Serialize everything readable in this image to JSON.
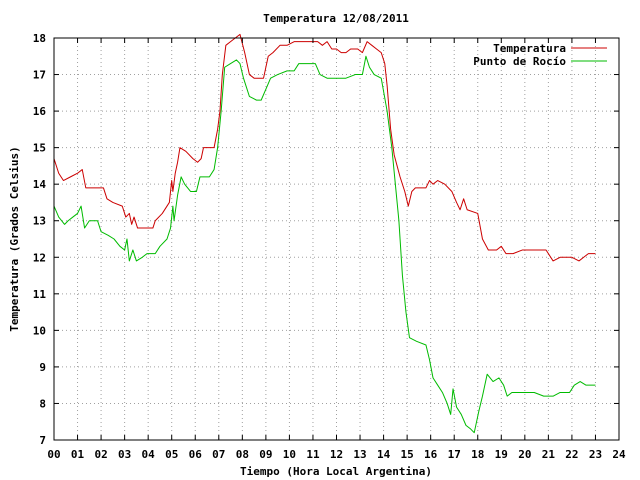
{
  "chart_data": {
    "type": "line",
    "title": "Temperatura 12/08/2011",
    "xlabel": "Tiempo (Hora Local Argentina)",
    "ylabel": "Temperatura (Grados Celsius)",
    "xlim": [
      0,
      24
    ],
    "ylim": [
      7,
      18
    ],
    "grid": true,
    "legend_position": "top-right",
    "x_ticks": [
      {
        "value": 0,
        "label": "00"
      },
      {
        "value": 1,
        "label": "01"
      },
      {
        "value": 2,
        "label": "02"
      },
      {
        "value": 3,
        "label": "03"
      },
      {
        "value": 4,
        "label": "04"
      },
      {
        "value": 5,
        "label": "05"
      },
      {
        "value": 6,
        "label": "06"
      },
      {
        "value": 7,
        "label": "07"
      },
      {
        "value": 8,
        "label": "08"
      },
      {
        "value": 9,
        "label": "09"
      },
      {
        "value": 10,
        "label": "10"
      },
      {
        "value": 11,
        "label": "11"
      },
      {
        "value": 12,
        "label": "12"
      },
      {
        "value": 13,
        "label": "13"
      },
      {
        "value": 14,
        "label": "14"
      },
      {
        "value": 15,
        "label": "15"
      },
      {
        "value": 16,
        "label": "16"
      },
      {
        "value": 17,
        "label": "17"
      },
      {
        "value": 18,
        "label": "18"
      },
      {
        "value": 19,
        "label": "19"
      },
      {
        "value": 20,
        "label": "20"
      },
      {
        "value": 21,
        "label": "21"
      },
      {
        "value": 22,
        "label": "22"
      },
      {
        "value": 23,
        "label": "23"
      },
      {
        "value": 24,
        "label": "24"
      }
    ],
    "y_ticks": [
      {
        "value": 7,
        "label": "7"
      },
      {
        "value": 8,
        "label": "8"
      },
      {
        "value": 9,
        "label": "9"
      },
      {
        "value": 10,
        "label": "10"
      },
      {
        "value": 11,
        "label": "11"
      },
      {
        "value": 12,
        "label": "12"
      },
      {
        "value": 13,
        "label": "13"
      },
      {
        "value": 14,
        "label": "14"
      },
      {
        "value": 15,
        "label": "15"
      },
      {
        "value": 16,
        "label": "16"
      },
      {
        "value": 17,
        "label": "17"
      },
      {
        "value": 18,
        "label": "18"
      }
    ],
    "series": [
      {
        "name": "Temperatura",
        "color": "#cc0000",
        "points": [
          [
            0.0,
            14.7
          ],
          [
            0.2,
            14.3
          ],
          [
            0.4,
            14.1
          ],
          [
            0.7,
            14.2
          ],
          [
            1.0,
            14.3
          ],
          [
            1.2,
            14.4
          ],
          [
            1.35,
            13.9
          ],
          [
            1.6,
            13.9
          ],
          [
            2.1,
            13.9
          ],
          [
            2.25,
            13.6
          ],
          [
            2.5,
            13.5
          ],
          [
            2.9,
            13.4
          ],
          [
            3.05,
            13.1
          ],
          [
            3.2,
            13.2
          ],
          [
            3.3,
            12.9
          ],
          [
            3.4,
            13.1
          ],
          [
            3.55,
            12.8
          ],
          [
            3.8,
            12.8
          ],
          [
            4.2,
            12.8
          ],
          [
            4.3,
            13.0
          ],
          [
            4.6,
            13.2
          ],
          [
            4.9,
            13.5
          ],
          [
            5.0,
            14.1
          ],
          [
            5.05,
            13.8
          ],
          [
            5.15,
            14.3
          ],
          [
            5.25,
            14.6
          ],
          [
            5.35,
            15.0
          ],
          [
            5.6,
            14.9
          ],
          [
            5.9,
            14.7
          ],
          [
            6.1,
            14.6
          ],
          [
            6.25,
            14.7
          ],
          [
            6.35,
            15.0
          ],
          [
            6.8,
            15.0
          ],
          [
            6.95,
            15.5
          ],
          [
            7.05,
            16.0
          ],
          [
            7.15,
            17.0
          ],
          [
            7.3,
            17.8
          ],
          [
            7.5,
            17.9
          ],
          [
            7.7,
            18.0
          ],
          [
            7.9,
            18.1
          ],
          [
            8.1,
            17.6
          ],
          [
            8.3,
            17.0
          ],
          [
            8.5,
            16.9
          ],
          [
            8.9,
            16.9
          ],
          [
            9.1,
            17.5
          ],
          [
            9.3,
            17.6
          ],
          [
            9.6,
            17.8
          ],
          [
            9.9,
            17.8
          ],
          [
            10.2,
            17.9
          ],
          [
            10.5,
            17.9
          ],
          [
            10.8,
            17.9
          ],
          [
            11.2,
            17.9
          ],
          [
            11.4,
            17.8
          ],
          [
            11.6,
            17.9
          ],
          [
            11.8,
            17.7
          ],
          [
            12.0,
            17.7
          ],
          [
            12.2,
            17.6
          ],
          [
            12.4,
            17.6
          ],
          [
            12.6,
            17.7
          ],
          [
            12.9,
            17.7
          ],
          [
            13.1,
            17.6
          ],
          [
            13.3,
            17.9
          ],
          [
            13.5,
            17.8
          ],
          [
            13.7,
            17.7
          ],
          [
            13.9,
            17.6
          ],
          [
            14.05,
            17.3
          ],
          [
            14.15,
            16.7
          ],
          [
            14.3,
            15.5
          ],
          [
            14.45,
            14.8
          ],
          [
            14.7,
            14.2
          ],
          [
            14.9,
            13.8
          ],
          [
            15.05,
            13.4
          ],
          [
            15.2,
            13.8
          ],
          [
            15.35,
            13.9
          ],
          [
            15.8,
            13.9
          ],
          [
            15.95,
            14.1
          ],
          [
            16.1,
            14.0
          ],
          [
            16.3,
            14.1
          ],
          [
            16.6,
            14.0
          ],
          [
            16.9,
            13.8
          ],
          [
            17.1,
            13.5
          ],
          [
            17.25,
            13.3
          ],
          [
            17.4,
            13.6
          ],
          [
            17.55,
            13.3
          ],
          [
            18.0,
            13.2
          ],
          [
            18.2,
            12.5
          ],
          [
            18.45,
            12.2
          ],
          [
            18.8,
            12.2
          ],
          [
            19.0,
            12.3
          ],
          [
            19.2,
            12.1
          ],
          [
            19.5,
            12.1
          ],
          [
            19.9,
            12.2
          ],
          [
            20.4,
            12.2
          ],
          [
            20.9,
            12.2
          ],
          [
            21.2,
            11.9
          ],
          [
            21.5,
            12.0
          ],
          [
            22.0,
            12.0
          ],
          [
            22.3,
            11.9
          ],
          [
            22.5,
            12.0
          ],
          [
            22.7,
            12.1
          ],
          [
            23.0,
            12.1
          ]
        ]
      },
      {
        "name": "Punto de Rocío",
        "color": "#00bb00",
        "points": [
          [
            0.0,
            13.4
          ],
          [
            0.2,
            13.1
          ],
          [
            0.45,
            12.9
          ],
          [
            0.6,
            13.0
          ],
          [
            0.8,
            13.1
          ],
          [
            1.0,
            13.2
          ],
          [
            1.15,
            13.4
          ],
          [
            1.3,
            12.8
          ],
          [
            1.5,
            13.0
          ],
          [
            1.85,
            13.0
          ],
          [
            2.0,
            12.7
          ],
          [
            2.3,
            12.6
          ],
          [
            2.55,
            12.5
          ],
          [
            2.8,
            12.3
          ],
          [
            3.0,
            12.2
          ],
          [
            3.1,
            12.5
          ],
          [
            3.2,
            11.9
          ],
          [
            3.35,
            12.2
          ],
          [
            3.5,
            11.9
          ],
          [
            3.75,
            12.0
          ],
          [
            3.95,
            12.1
          ],
          [
            4.3,
            12.1
          ],
          [
            4.5,
            12.3
          ],
          [
            4.8,
            12.5
          ],
          [
            4.95,
            12.8
          ],
          [
            5.05,
            13.4
          ],
          [
            5.1,
            13.0
          ],
          [
            5.25,
            13.7
          ],
          [
            5.4,
            14.2
          ],
          [
            5.55,
            14.0
          ],
          [
            5.8,
            13.8
          ],
          [
            6.05,
            13.8
          ],
          [
            6.2,
            14.2
          ],
          [
            6.6,
            14.2
          ],
          [
            6.8,
            14.4
          ],
          [
            6.95,
            15.0
          ],
          [
            7.1,
            16.0
          ],
          [
            7.25,
            17.2
          ],
          [
            7.5,
            17.3
          ],
          [
            7.75,
            17.4
          ],
          [
            7.9,
            17.3
          ],
          [
            8.05,
            16.9
          ],
          [
            8.3,
            16.4
          ],
          [
            8.6,
            16.3
          ],
          [
            8.8,
            16.3
          ],
          [
            9.0,
            16.6
          ],
          [
            9.2,
            16.9
          ],
          [
            9.5,
            17.0
          ],
          [
            9.9,
            17.1
          ],
          [
            10.2,
            17.1
          ],
          [
            10.4,
            17.3
          ],
          [
            10.8,
            17.3
          ],
          [
            11.1,
            17.3
          ],
          [
            11.3,
            17.0
          ],
          [
            11.6,
            16.9
          ],
          [
            12.0,
            16.9
          ],
          [
            12.4,
            16.9
          ],
          [
            12.8,
            17.0
          ],
          [
            13.1,
            17.0
          ],
          [
            13.25,
            17.5
          ],
          [
            13.4,
            17.2
          ],
          [
            13.6,
            17.0
          ],
          [
            13.9,
            16.9
          ],
          [
            14.15,
            16.0
          ],
          [
            14.35,
            15.0
          ],
          [
            14.5,
            14.0
          ],
          [
            14.65,
            13.0
          ],
          [
            14.8,
            11.5
          ],
          [
            14.95,
            10.5
          ],
          [
            15.1,
            9.8
          ],
          [
            15.4,
            9.7
          ],
          [
            15.8,
            9.6
          ],
          [
            15.95,
            9.2
          ],
          [
            16.1,
            8.7
          ],
          [
            16.3,
            8.5
          ],
          [
            16.5,
            8.3
          ],
          [
            16.7,
            8.0
          ],
          [
            16.85,
            7.7
          ],
          [
            16.95,
            8.4
          ],
          [
            17.1,
            7.9
          ],
          [
            17.3,
            7.7
          ],
          [
            17.5,
            7.4
          ],
          [
            17.7,
            7.3
          ],
          [
            17.85,
            7.2
          ],
          [
            18.05,
            7.8
          ],
          [
            18.2,
            8.2
          ],
          [
            18.4,
            8.8
          ],
          [
            18.65,
            8.6
          ],
          [
            18.9,
            8.7
          ],
          [
            19.1,
            8.5
          ],
          [
            19.25,
            8.2
          ],
          [
            19.45,
            8.3
          ],
          [
            19.7,
            8.3
          ],
          [
            20.0,
            8.3
          ],
          [
            20.4,
            8.3
          ],
          [
            20.8,
            8.2
          ],
          [
            21.2,
            8.2
          ],
          [
            21.5,
            8.3
          ],
          [
            21.9,
            8.3
          ],
          [
            22.1,
            8.5
          ],
          [
            22.35,
            8.6
          ],
          [
            22.6,
            8.5
          ],
          [
            23.0,
            8.5
          ]
        ]
      }
    ]
  }
}
